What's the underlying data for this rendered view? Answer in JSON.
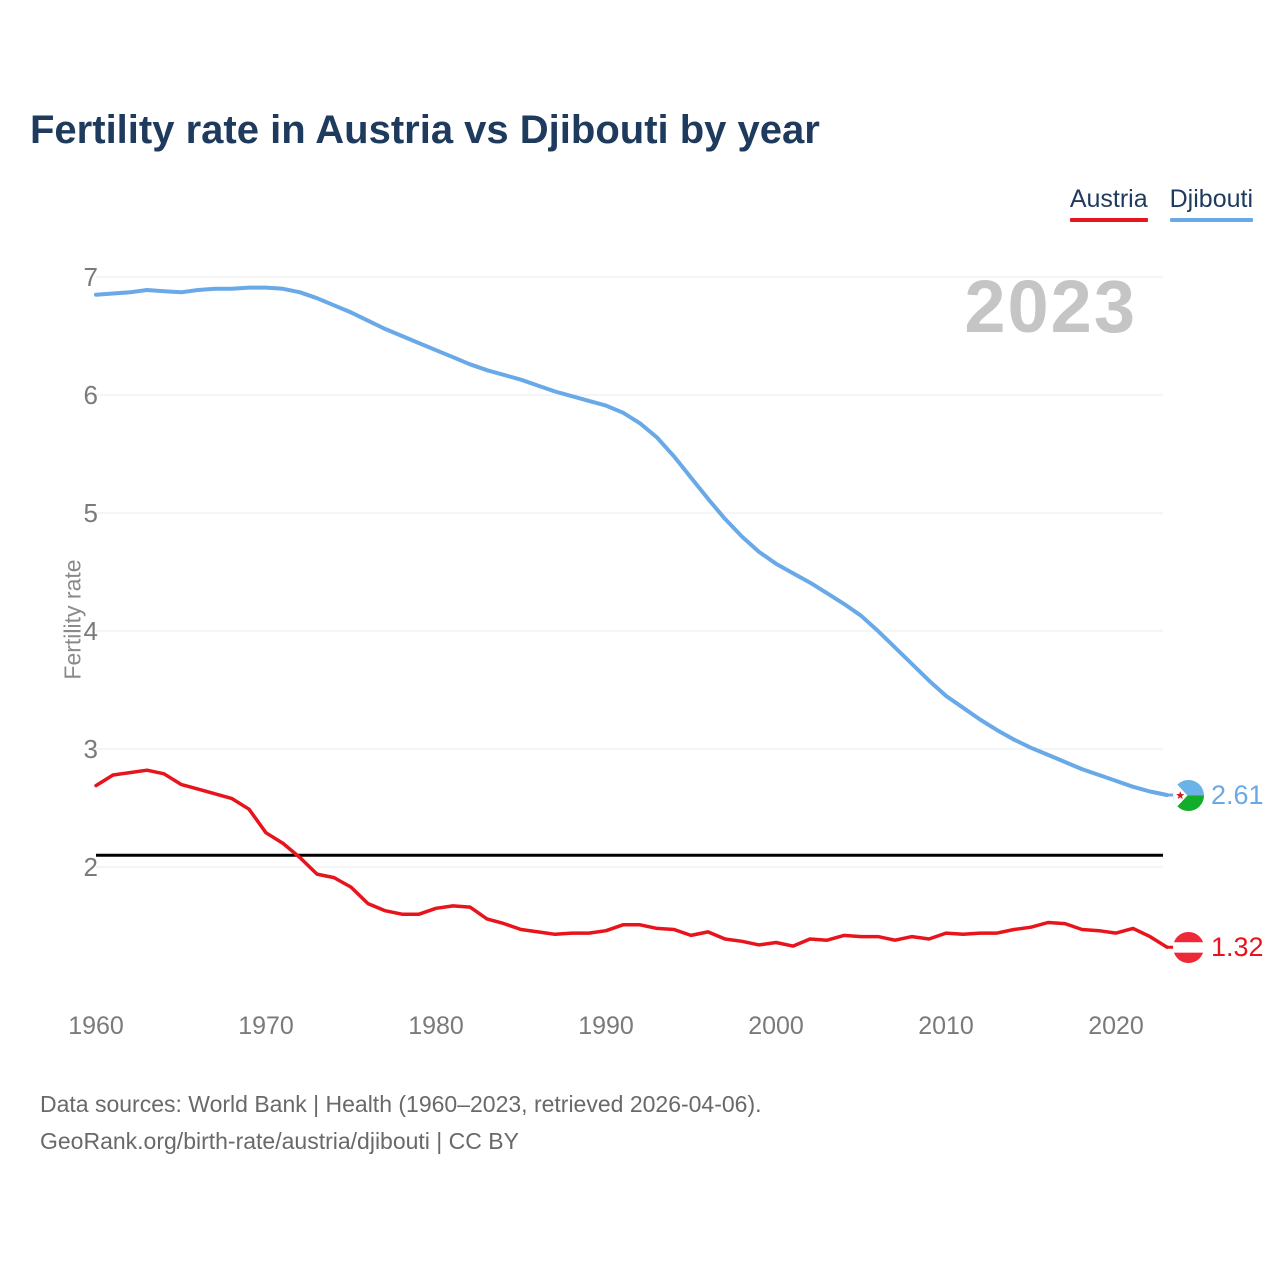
{
  "header": {
    "title": "Fertility rate in Austria vs Djibouti by year"
  },
  "legend": [
    {
      "label": "Austria",
      "color": "#e8141b"
    },
    {
      "label": "Djibouti",
      "color": "#69a9e8"
    }
  ],
  "chart_data": {
    "type": "line",
    "title": "Fertility rate in Austria vs Djibouti by year",
    "xlabel": "",
    "ylabel": "Fertility rate",
    "watermark": "2023",
    "x_range": [
      1960,
      2023
    ],
    "x_ticks": [
      1960,
      1970,
      1980,
      1990,
      2000,
      2010,
      2020
    ],
    "y_ticks": [
      7,
      6,
      5,
      4,
      3,
      2
    ],
    "ylim": [
      1.1,
      7.15
    ],
    "grid": "horizontal",
    "legend_position": "top-right",
    "reference_line": {
      "value": 2.1,
      "color": "#000000"
    },
    "series": [
      {
        "name": "Austria",
        "color": "#e8141b",
        "end_label": "1.32",
        "flag": "austria",
        "values": [
          2.69,
          2.78,
          2.8,
          2.82,
          2.79,
          2.7,
          2.66,
          2.62,
          2.58,
          2.49,
          2.29,
          2.2,
          2.08,
          1.94,
          1.91,
          1.83,
          1.69,
          1.63,
          1.6,
          1.6,
          1.65,
          1.67,
          1.66,
          1.56,
          1.52,
          1.47,
          1.45,
          1.43,
          1.44,
          1.44,
          1.46,
          1.51,
          1.51,
          1.48,
          1.47,
          1.42,
          1.45,
          1.39,
          1.37,
          1.34,
          1.36,
          1.33,
          1.39,
          1.38,
          1.42,
          1.41,
          1.41,
          1.38,
          1.41,
          1.39,
          1.44,
          1.43,
          1.44,
          1.44,
          1.47,
          1.49,
          1.53,
          1.52,
          1.47,
          1.46,
          1.44,
          1.48,
          1.41,
          1.32
        ]
      },
      {
        "name": "Djibouti",
        "color": "#69a9e8",
        "end_label": "2.61",
        "flag": "djibouti",
        "values": [
          6.85,
          6.86,
          6.87,
          6.89,
          6.88,
          6.87,
          6.89,
          6.9,
          6.9,
          6.91,
          6.91,
          6.9,
          6.87,
          6.82,
          6.76,
          6.7,
          6.63,
          6.56,
          6.5,
          6.44,
          6.38,
          6.32,
          6.26,
          6.21,
          6.17,
          6.13,
          6.08,
          6.03,
          5.99,
          5.95,
          5.91,
          5.85,
          5.76,
          5.64,
          5.48,
          5.3,
          5.12,
          4.95,
          4.8,
          4.67,
          4.57,
          4.49,
          4.41,
          4.32,
          4.23,
          4.13,
          4.0,
          3.86,
          3.72,
          3.58,
          3.45,
          3.35,
          3.25,
          3.16,
          3.08,
          3.01,
          2.95,
          2.89,
          2.83,
          2.78,
          2.73,
          2.68,
          2.64,
          2.61
        ]
      }
    ]
  },
  "flag_colors": {
    "austria_red": "#ed2939",
    "austria_white": "#ffffff",
    "djibouti_blue": "#6ab2e7",
    "djibouti_green": "#12ad2b",
    "djibouti_white": "#ffffff",
    "djibouti_star_red": "#d7141a"
  },
  "colors": {
    "title": "#1e3a5c",
    "axis_text": "#7a7a7a",
    "gridline": "#ebebeb",
    "watermark": "#c5c5c5",
    "footer_text": "#696969",
    "background": "#ffffff"
  },
  "footer": {
    "line1": "Data sources: World Bank | Health (1960–2023, retrieved 2026-04-06).",
    "line2": "GeoRank.org/birth-rate/austria/djibouti | CC BY"
  }
}
